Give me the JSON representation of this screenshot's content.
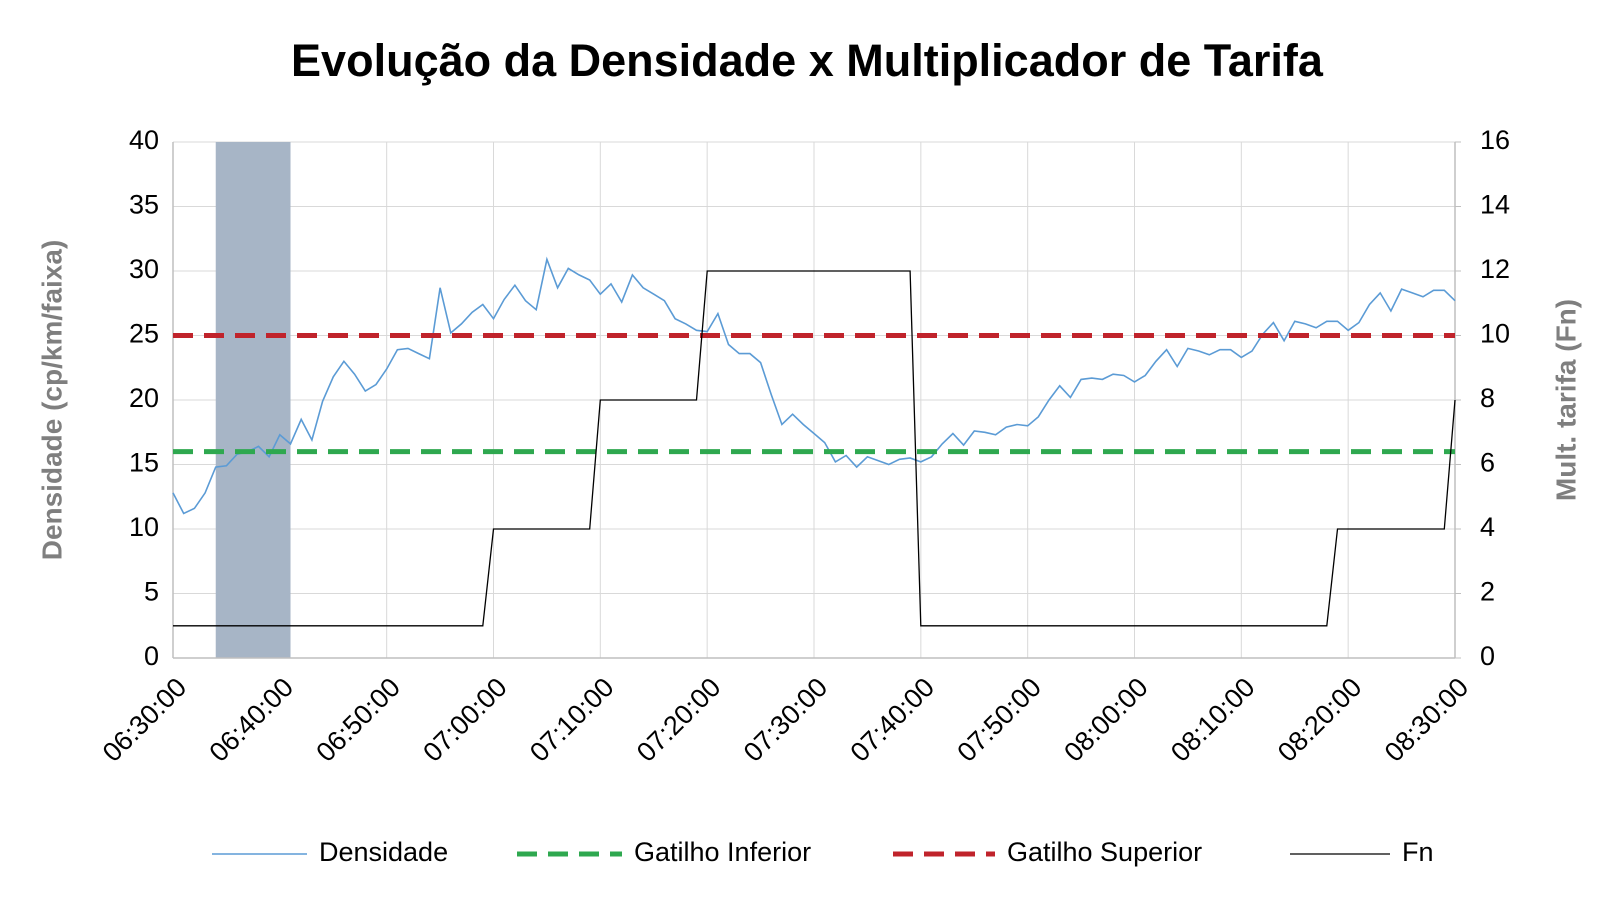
{
  "chart_data": {
    "type": "line",
    "title": "Evolução da Densidade x Multiplicador de Tarifa",
    "y_label": "Densidade (cp/km/faixa)",
    "y2_label": "Mult. tarifa (Fn)",
    "x": [
      "06:30:00",
      "06:31:00",
      "06:32:00",
      "06:33:00",
      "06:34:00",
      "06:35:00",
      "06:36:00",
      "06:37:00",
      "06:38:00",
      "06:39:00",
      "06:40:00",
      "06:41:00",
      "06:42:00",
      "06:43:00",
      "06:44:00",
      "06:45:00",
      "06:46:00",
      "06:47:00",
      "06:48:00",
      "06:49:00",
      "06:50:00",
      "06:51:00",
      "06:52:00",
      "06:53:00",
      "06:54:00",
      "06:55:00",
      "06:56:00",
      "06:57:00",
      "06:58:00",
      "06:59:00",
      "07:00:00",
      "07:01:00",
      "07:02:00",
      "07:03:00",
      "07:04:00",
      "07:05:00",
      "07:06:00",
      "07:07:00",
      "07:08:00",
      "07:09:00",
      "07:10:00",
      "07:11:00",
      "07:12:00",
      "07:13:00",
      "07:14:00",
      "07:15:00",
      "07:16:00",
      "07:17:00",
      "07:18:00",
      "07:19:00",
      "07:20:00",
      "07:21:00",
      "07:22:00",
      "07:23:00",
      "07:24:00",
      "07:25:00",
      "07:26:00",
      "07:27:00",
      "07:28:00",
      "07:29:00",
      "07:30:00",
      "07:31:00",
      "07:32:00",
      "07:33:00",
      "07:34:00",
      "07:35:00",
      "07:36:00",
      "07:37:00",
      "07:38:00",
      "07:39:00",
      "07:40:00",
      "07:41:00",
      "07:42:00",
      "07:43:00",
      "07:44:00",
      "07:45:00",
      "07:46:00",
      "07:47:00",
      "07:48:00",
      "07:49:00",
      "07:50:00",
      "07:51:00",
      "07:52:00",
      "07:53:00",
      "07:54:00",
      "07:55:00",
      "07:56:00",
      "07:57:00",
      "07:58:00",
      "07:59:00",
      "08:00:00",
      "08:01:00",
      "08:02:00",
      "08:03:00",
      "08:04:00",
      "08:05:00",
      "08:06:00",
      "08:07:00",
      "08:08:00",
      "08:09:00",
      "08:10:00",
      "08:11:00",
      "08:12:00",
      "08:13:00",
      "08:14:00",
      "08:15:00",
      "08:16:00",
      "08:17:00",
      "08:18:00",
      "08:19:00",
      "08:20:00",
      "08:21:00",
      "08:22:00",
      "08:23:00",
      "08:24:00",
      "08:25:00",
      "08:26:00",
      "08:27:00",
      "08:28:00",
      "08:29:00",
      "08:30:00"
    ],
    "series": [
      {
        "name": "Densidade",
        "color": "#5b9bd5",
        "style": "solid",
        "values": [
          12.8,
          11.2,
          11.6,
          12.8,
          14.8,
          14.9,
          15.8,
          16.0,
          16.4,
          15.6,
          17.3,
          16.6,
          18.5,
          16.9,
          19.9,
          21.8,
          23.0,
          22.0,
          20.7,
          21.2,
          22.4,
          23.9,
          24.0,
          23.6,
          23.2,
          28.7,
          25.2,
          25.9,
          26.8,
          27.4,
          26.3,
          27.8,
          28.9,
          27.7,
          27.0,
          30.9,
          28.7,
          30.2,
          29.7,
          29.3,
          28.2,
          29.0,
          27.6,
          29.7,
          28.7,
          28.2,
          27.7,
          26.3,
          25.9,
          25.4,
          25.3,
          26.7,
          24.3,
          23.6,
          23.6,
          22.9,
          20.4,
          18.1,
          18.9,
          18.1,
          17.4,
          16.7,
          15.2,
          15.7,
          14.8,
          15.6,
          15.3,
          15.0,
          15.4,
          15.5,
          15.2,
          15.6,
          16.6,
          17.4,
          16.5,
          17.6,
          17.5,
          17.3,
          17.9,
          18.1,
          18.0,
          18.7,
          20.0,
          21.1,
          20.2,
          21.6,
          21.7,
          21.6,
          22.0,
          21.9,
          21.4,
          21.9,
          23.0,
          23.9,
          22.6,
          24.0,
          23.8,
          23.5,
          23.9,
          23.9,
          23.3,
          23.8,
          25.1,
          26.0,
          24.6,
          26.1,
          25.9,
          25.6,
          26.1,
          26.1,
          25.4,
          26.0,
          27.4,
          28.3,
          26.9,
          28.6,
          28.3,
          28.0,
          28.5,
          28.5,
          27.7
        ]
      },
      {
        "name": "Gatilho Inferior",
        "color": "#2ea84f",
        "style": "dashed",
        "values": [
          16,
          16,
          16,
          16,
          16,
          16,
          16,
          16,
          16,
          16,
          16,
          16,
          16,
          16,
          16,
          16,
          16,
          16,
          16,
          16,
          16,
          16,
          16,
          16,
          16,
          16,
          16,
          16,
          16,
          16,
          16,
          16,
          16,
          16,
          16,
          16,
          16,
          16,
          16,
          16,
          16,
          16,
          16,
          16,
          16,
          16,
          16,
          16,
          16,
          16,
          16,
          16,
          16,
          16,
          16,
          16,
          16,
          16,
          16,
          16,
          16,
          16,
          16,
          16,
          16,
          16,
          16,
          16,
          16,
          16,
          16,
          16,
          16,
          16,
          16,
          16,
          16,
          16,
          16,
          16,
          16,
          16,
          16,
          16,
          16,
          16,
          16,
          16,
          16,
          16,
          16,
          16,
          16,
          16,
          16,
          16,
          16,
          16,
          16,
          16,
          16,
          16,
          16,
          16,
          16,
          16,
          16,
          16,
          16,
          16,
          16,
          16,
          16,
          16,
          16,
          16,
          16,
          16,
          16,
          16,
          16
        ]
      },
      {
        "name": "Gatilho Superior",
        "color": "#c0232b",
        "style": "dashed",
        "values": [
          25,
          25,
          25,
          25,
          25,
          25,
          25,
          25,
          25,
          25,
          25,
          25,
          25,
          25,
          25,
          25,
          25,
          25,
          25,
          25,
          25,
          25,
          25,
          25,
          25,
          25,
          25,
          25,
          25,
          25,
          25,
          25,
          25,
          25,
          25,
          25,
          25,
          25,
          25,
          25,
          25,
          25,
          25,
          25,
          25,
          25,
          25,
          25,
          25,
          25,
          25,
          25,
          25,
          25,
          25,
          25,
          25,
          25,
          25,
          25,
          25,
          25,
          25,
          25,
          25,
          25,
          25,
          25,
          25,
          25,
          25,
          25,
          25,
          25,
          25,
          25,
          25,
          25,
          25,
          25,
          25,
          25,
          25,
          25,
          25,
          25,
          25,
          25,
          25,
          25,
          25,
          25,
          25,
          25,
          25,
          25,
          25,
          25,
          25,
          25,
          25,
          25,
          25,
          25,
          25,
          25,
          25,
          25,
          25,
          25,
          25,
          25,
          25,
          25,
          25,
          25,
          25,
          25,
          25,
          25,
          25
        ]
      },
      {
        "name": "Fn",
        "color": "#000000",
        "style": "solid",
        "axis": "y2",
        "values": [
          1,
          1,
          1,
          1,
          1,
          1,
          1,
          1,
          1,
          1,
          1,
          1,
          1,
          1,
          1,
          1,
          1,
          1,
          1,
          1,
          1,
          1,
          1,
          1,
          1,
          1,
          1,
          1,
          1,
          1,
          4,
          4,
          4,
          4,
          4,
          4,
          4,
          4,
          4,
          4,
          8,
          8,
          8,
          8,
          8,
          8,
          8,
          8,
          8,
          8,
          12,
          12,
          12,
          12,
          12,
          12,
          12,
          12,
          12,
          12,
          12,
          12,
          12,
          12,
          12,
          12,
          12,
          12,
          12,
          12,
          1,
          1,
          1,
          1,
          1,
          1,
          1,
          1,
          1,
          1,
          1,
          1,
          1,
          1,
          1,
          1,
          1,
          1,
          1,
          1,
          1,
          1,
          1,
          1,
          1,
          1,
          1,
          1,
          1,
          1,
          1,
          1,
          1,
          1,
          1,
          1,
          1,
          1,
          1,
          4,
          4,
          4,
          4,
          4,
          4,
          4,
          4,
          4,
          4,
          4,
          8
        ]
      }
    ],
    "highlight": {
      "x": [
        "06:34:00",
        "06:41:00"
      ],
      "color": "#a7b5c6"
    },
    "xlim": [
      "06:30:00",
      "08:30:00"
    ],
    "xticks": [
      "06:30:00",
      "06:40:00",
      "06:50:00",
      "07:00:00",
      "07:10:00",
      "07:20:00",
      "07:30:00",
      "07:40:00",
      "07:50:00",
      "08:00:00",
      "08:10:00",
      "08:20:00",
      "08:30:00"
    ],
    "ylim": [
      0,
      40
    ],
    "yticks": [
      0,
      5,
      10,
      15,
      20,
      25,
      30,
      35,
      40
    ],
    "y2lim": [
      0,
      16
    ],
    "y2ticks": [
      0,
      2,
      4,
      6,
      8,
      10,
      12,
      14,
      16
    ],
    "grid": true,
    "legend": "bottom"
  }
}
